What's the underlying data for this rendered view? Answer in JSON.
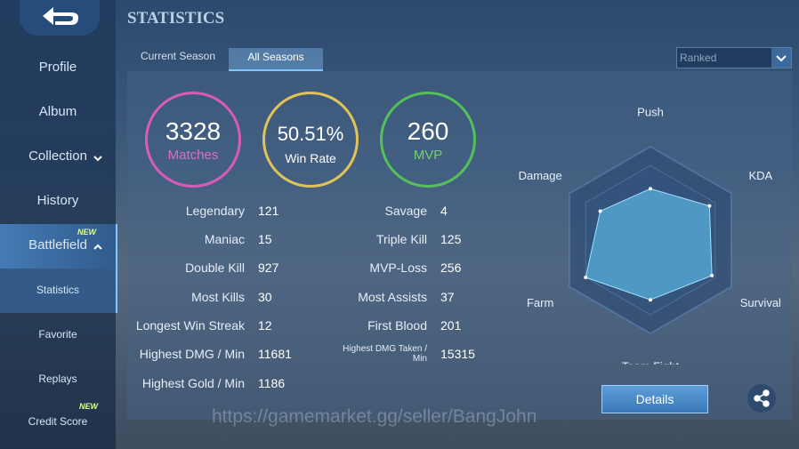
{
  "header": {
    "title": "STATISTICS"
  },
  "sidebar": [
    {
      "label": "Profile"
    },
    {
      "label": "Album"
    },
    {
      "label": "Collection"
    },
    {
      "label": "History"
    },
    {
      "label": "Battlefield",
      "badge": "NEW"
    },
    {
      "label": "Statistics"
    },
    {
      "label": "Favorite"
    },
    {
      "label": "Replays"
    },
    {
      "label": "Credit Score",
      "badge": "NEW"
    }
  ],
  "tabs": [
    "Current Season",
    "All Seasons"
  ],
  "filter": "Ranked",
  "summary": [
    {
      "value": 3328,
      "label": "Matches"
    },
    {
      "value": "50.51%",
      "label": "Win Rate"
    },
    {
      "value": 260,
      "label": "MVP"
    }
  ],
  "stats_left": [
    [
      "Legendary",
      121
    ],
    [
      "Maniac",
      15
    ],
    [
      "Double Kill",
      927
    ],
    [
      "Most Kills",
      30
    ],
    [
      "Longest Win Streak",
      12
    ],
    [
      "Highest DMG / Min",
      11681
    ],
    [
      "Highest Gold / Min",
      1186
    ]
  ],
  "stats_right": [
    [
      "Savage",
      4
    ],
    [
      "Triple Kill",
      125
    ],
    [
      "MVP-Loss",
      256
    ],
    [
      "Most Assists",
      37
    ],
    [
      "First Blood",
      201
    ],
    [
      "Highest DMG Taken / Min",
      15315
    ]
  ],
  "radar": {
    "axes": [
      "Push",
      "KDA",
      "Survival",
      "Team Fight",
      "Farm",
      "Damage"
    ],
    "values": [
      55,
      73,
      76,
      64,
      80,
      62
    ],
    "rlim": [
      0,
      100
    ]
  },
  "button": "Details",
  "watermark": "https://gamemarket.gg/seller/BangJohn"
}
